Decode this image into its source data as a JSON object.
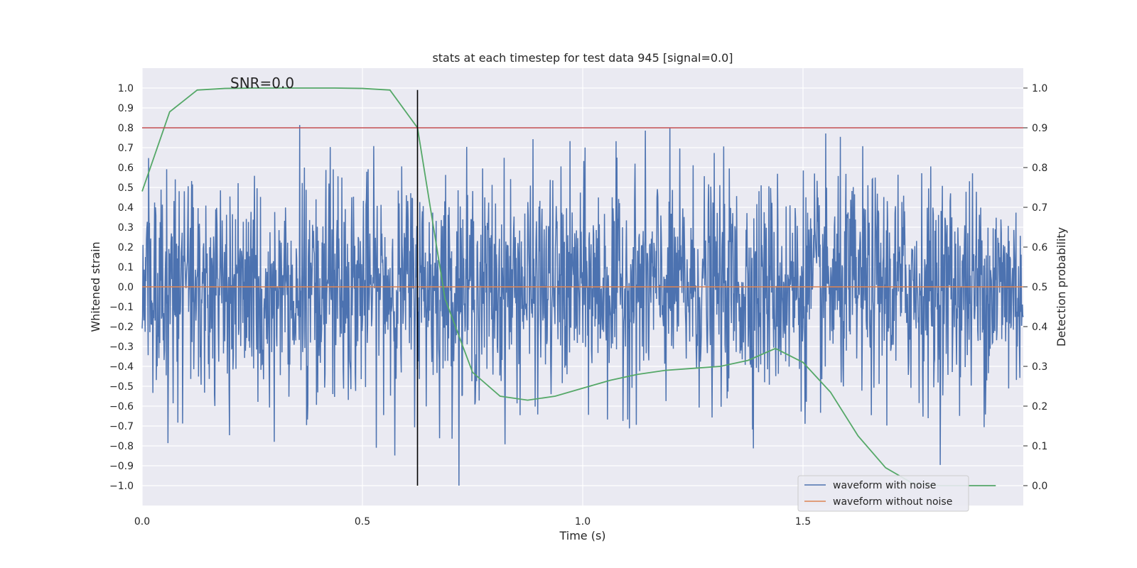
{
  "chart_data": {
    "type": "line",
    "title": "stats at each timestep for test data 945 [signal=0.0]",
    "xlabel": "Time (s)",
    "ylabel_left": "Whitened strain",
    "ylabel_right": "Detection probability",
    "xlim": [
      0.0,
      2.0
    ],
    "ylim_left": [
      -1.1,
      1.1
    ],
    "ylim_right": [
      -0.05,
      1.05
    ],
    "x_ticks": [
      0.0,
      0.5,
      1.0,
      1.5
    ],
    "x_tick_labels": [
      "0.0",
      "0.5",
      "1.0",
      "1.5"
    ],
    "y_left_ticks": [
      1.0,
      0.9,
      0.8,
      0.7,
      0.6,
      0.5,
      0.4,
      0.3,
      0.2,
      0.1,
      0.0,
      -0.1,
      -0.2,
      -0.3,
      -0.4,
      -0.5,
      -0.6,
      -0.7,
      -0.8,
      -0.9,
      -1.0
    ],
    "y_left_tick_labels": [
      "1.0",
      "0.9",
      "0.8",
      "0.7",
      "0.6",
      "0.5",
      "0.4",
      "0.3",
      "0.2",
      "0.1",
      "0.0",
      "−0.1",
      "−0.2",
      "−0.3",
      "−0.4",
      "−0.5",
      "−0.6",
      "−0.7",
      "−0.8",
      "−0.9",
      "−1.0"
    ],
    "y_right_ticks": [
      1.0,
      0.9,
      0.8,
      0.7,
      0.6,
      0.5,
      0.4,
      0.3,
      0.2,
      0.1,
      0.0
    ],
    "y_right_tick_labels": [
      "1.0",
      "0.9",
      "0.8",
      "0.7",
      "0.6",
      "0.5",
      "0.4",
      "0.3",
      "0.2",
      "0.1",
      "0.0"
    ],
    "annotation": "SNR=0.0",
    "annotation_at": {
      "x": 0.2,
      "y": 1.0
    },
    "legend_location": "lower-right",
    "series": [
      {
        "name": "waveform with noise",
        "color": "#4c72b0",
        "kind": "noise",
        "samples": 2048,
        "x_start": 0.0,
        "x_end": 2.0,
        "std": 0.27,
        "clip": [
          -1.0,
          1.0
        ],
        "seed": 945
      },
      {
        "name": "waveform without noise",
        "color": "#dd8452",
        "kind": "line",
        "x": [
          0.0,
          2.0
        ],
        "y": [
          0.0,
          0.0
        ]
      },
      {
        "name": "Detection probability",
        "color": "#55a868",
        "axis": "right",
        "in_legend": false,
        "x": [
          0.0,
          0.0625,
          0.125,
          0.1875,
          0.25,
          0.3125,
          0.375,
          0.4375,
          0.5,
          0.5625,
          0.625,
          0.6875,
          0.75,
          0.8125,
          0.875,
          0.9375,
          1.0,
          1.0625,
          1.125,
          1.1875,
          1.25,
          1.3125,
          1.375,
          1.4375,
          1.5,
          1.5625,
          1.625,
          1.6875,
          1.75,
          1.8125,
          1.875,
          1.9375
        ],
        "y": [
          0.74,
          0.94,
          0.995,
          0.999,
          1.0,
          1.0,
          1.0,
          1.0,
          0.999,
          0.995,
          0.9,
          0.47,
          0.285,
          0.225,
          0.215,
          0.225,
          0.245,
          0.265,
          0.28,
          0.29,
          0.295,
          0.3,
          0.315,
          0.345,
          0.31,
          0.235,
          0.125,
          0.045,
          0.005,
          0.0,
          0.0,
          0.0
        ]
      },
      {
        "name": "threshold",
        "color": "#c44e52",
        "axis": "right",
        "in_legend": false,
        "kind": "hline",
        "y": 0.9
      },
      {
        "name": "decision time",
        "color": "#000000",
        "kind": "vline",
        "x": 0.625,
        "y_range": [
          -1.0,
          0.99
        ]
      }
    ]
  }
}
